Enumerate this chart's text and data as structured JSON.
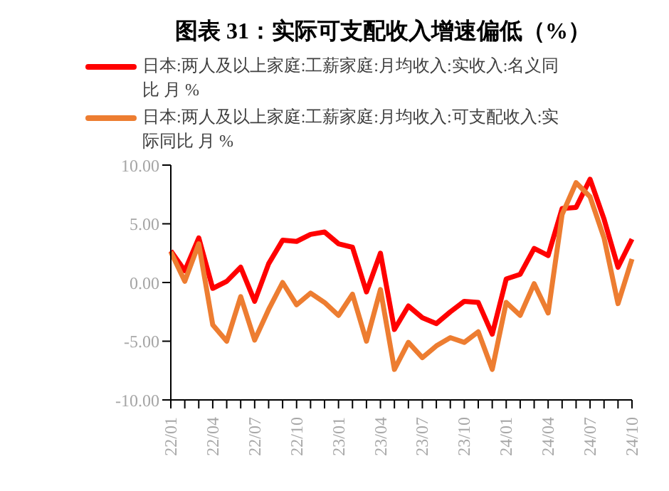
{
  "chart_data": {
    "type": "line",
    "title": "图表 31：实际可支配收入增速偏低（%）",
    "categories": [
      "22/01",
      null,
      null,
      "22/04",
      null,
      null,
      "22/07",
      null,
      null,
      "22/10",
      null,
      null,
      "23/01",
      null,
      null,
      "23/04",
      null,
      null,
      "23/07",
      null,
      null,
      "23/10",
      null,
      null,
      "24/01",
      null,
      null,
      "24/04",
      null,
      null,
      "24/07",
      null,
      null,
      "24/10"
    ],
    "series": [
      {
        "name": "日本:两人及以上家庭:工薪家庭:月均收入:实收入:名义同比 月 %",
        "color": "#ff0000",
        "values": [
          2.7,
          1.0,
          3.8,
          -0.5,
          0.1,
          1.3,
          -1.6,
          1.6,
          3.6,
          3.5,
          4.1,
          4.3,
          3.3,
          3.0,
          -0.8,
          2.5,
          -4.0,
          -2.0,
          -3.0,
          -3.5,
          -2.5,
          -1.6,
          -1.7,
          -4.4,
          0.3,
          0.7,
          2.9,
          2.3,
          6.3,
          6.4,
          8.8,
          5.4,
          1.3,
          3.7
        ]
      },
      {
        "name": "日本:两人及以上家庭:工薪家庭:月均收入:可支配收入:实际同比 月 %",
        "color": "#ed7d31",
        "values": [
          2.6,
          0.1,
          3.3,
          -3.6,
          -5.0,
          -1.2,
          -4.9,
          -2.3,
          0.0,
          -1.9,
          -0.9,
          -1.7,
          -2.8,
          -1.0,
          -5.0,
          -0.6,
          -7.4,
          -5.1,
          -6.4,
          -5.4,
          -4.7,
          -5.1,
          -4.2,
          -7.4,
          -1.7,
          -2.8,
          -0.1,
          -2.6,
          5.8,
          8.5,
          7.3,
          3.8,
          -1.8,
          2.0
        ]
      }
    ],
    "ylim": [
      -10,
      10
    ],
    "yticks": [
      {
        "value": -10,
        "label": "-10.00"
      },
      {
        "value": -5,
        "label": "-5.00"
      },
      {
        "value": 0,
        "label": "0.00"
      },
      {
        "value": 5,
        "label": "5.00"
      },
      {
        "value": 10,
        "label": "10.00"
      }
    ],
    "grid": false,
    "legend": "top",
    "marker": "none",
    "line_style": "solid"
  }
}
